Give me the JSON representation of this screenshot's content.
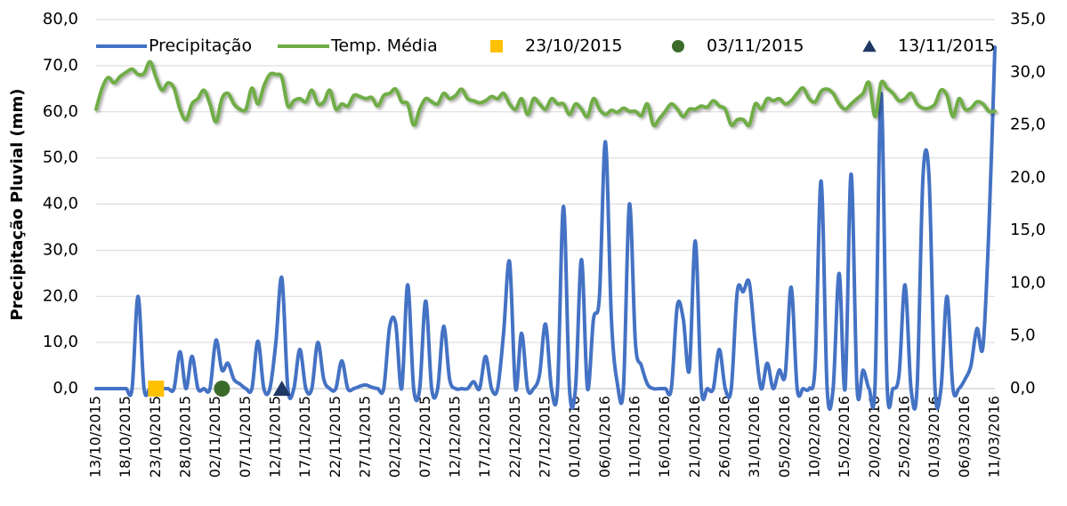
{
  "chart_data": {
    "type": "line",
    "y_label": "Precipitação Pluvial (mm)",
    "categories": [
      "13/10/2015",
      null,
      null,
      null,
      null,
      "18/10/2015",
      null,
      null,
      null,
      null,
      "23/10/2015",
      null,
      null,
      null,
      null,
      "28/10/2015",
      null,
      null,
      null,
      null,
      "02/11/2015",
      null,
      null,
      null,
      null,
      "07/11/2015",
      null,
      null,
      null,
      null,
      "12/11/2015",
      null,
      null,
      null,
      null,
      "17/11/2015",
      null,
      null,
      null,
      null,
      "22/11/2015",
      null,
      null,
      null,
      null,
      "27/11/2015",
      null,
      null,
      null,
      null,
      "02/12/2015",
      null,
      null,
      null,
      null,
      "07/12/2015",
      null,
      null,
      null,
      null,
      "12/12/2015",
      null,
      null,
      null,
      null,
      "17/12/2015",
      null,
      null,
      null,
      null,
      "22/12/2015",
      null,
      null,
      null,
      null,
      "27/12/2015",
      null,
      null,
      null,
      null,
      "01/01/2016",
      null,
      null,
      null,
      null,
      "06/01/2016",
      null,
      null,
      null,
      null,
      "11/01/2016",
      null,
      null,
      null,
      null,
      "16/01/2016",
      null,
      null,
      null,
      null,
      "21/01/2016",
      null,
      null,
      null,
      null,
      "26/01/2016",
      null,
      null,
      null,
      null,
      "31/01/2016",
      null,
      null,
      null,
      null,
      "05/02/2016",
      null,
      null,
      null,
      null,
      "10/02/2016",
      null,
      null,
      null,
      null,
      "15/02/2016",
      null,
      null,
      null,
      null,
      "20/02/2016",
      null,
      null,
      null,
      null,
      "25/02/2016",
      null,
      null,
      null,
      null,
      "01/03/2016",
      null,
      null,
      null,
      null,
      "06/03/2016",
      null,
      null,
      null,
      null,
      "11/03/2016"
    ],
    "series": [
      {
        "name": "Precipitação",
        "color": "#4472c4",
        "values": [
          0,
          0,
          0,
          0,
          0,
          0,
          0,
          20,
          0,
          0,
          0,
          0,
          0,
          0,
          8,
          0,
          7,
          0,
          0,
          0,
          10.5,
          4,
          5.5,
          2,
          1,
          0,
          0,
          10.3,
          0,
          0,
          10,
          24,
          0,
          0,
          8.5,
          0,
          0,
          10,
          2,
          0,
          0,
          6,
          0,
          0,
          0.5,
          0.8,
          0.3,
          0,
          0,
          13.5,
          14,
          0,
          22.5,
          0,
          0,
          19,
          0,
          0,
          13.5,
          2,
          0,
          0,
          0,
          1.5,
          0,
          7,
          0,
          0,
          12,
          27.5,
          0,
          12,
          0,
          0,
          3,
          14,
          0,
          0,
          39.5,
          0,
          0,
          28,
          0,
          15,
          20,
          53.5,
          15,
          1,
          0,
          40,
          10,
          5,
          1,
          0,
          0,
          0,
          0,
          18,
          15,
          4,
          32,
          0,
          0,
          0,
          8.5,
          0,
          0,
          21,
          21,
          23,
          10,
          0,
          5.5,
          0,
          4,
          3,
          22,
          0,
          0,
          0,
          5,
          45,
          0,
          0,
          25,
          0,
          46.5,
          0,
          4,
          0,
          1,
          64,
          1,
          0,
          3,
          22.5,
          0,
          0,
          46,
          46,
          0,
          0,
          20,
          0,
          0,
          2,
          5,
          13,
          9,
          35,
          74
        ]
      },
      {
        "name": "Temp. Média",
        "color": "#70ad47",
        "axis": "y2",
        "values": [
          26.5,
          28.5,
          29.5,
          29,
          29.6,
          30,
          30.3,
          29.8,
          29.9,
          31,
          29.5,
          28.3,
          29,
          28.5,
          26.5,
          25.5,
          27,
          27.5,
          28.3,
          27,
          25.3,
          27.5,
          28,
          27,
          26.5,
          26.5,
          28.5,
          27,
          28.7,
          29.8,
          29.8,
          29.5,
          26.8,
          27.3,
          27.5,
          27.2,
          28.3,
          27,
          27.2,
          28.3,
          26.5,
          27,
          26.8,
          27.8,
          27.7,
          27.5,
          27.6,
          26.8,
          27.8,
          28,
          28.4,
          27.2,
          27,
          25,
          26.5,
          27.5,
          27.2,
          27,
          28,
          27.5,
          27.8,
          28.4,
          27.5,
          27.3,
          27.1,
          27.3,
          27.7,
          27.5,
          28,
          27,
          26.5,
          27.5,
          26,
          27.5,
          27,
          26.5,
          27.5,
          27,
          27,
          26,
          27,
          26.5,
          25.8,
          27.5,
          26.5,
          26,
          26.4,
          26.2,
          26.6,
          26.3,
          26.3,
          25.9,
          27,
          25,
          25.6,
          26.3,
          27,
          26.5,
          25.8,
          26.5,
          26.5,
          26.8,
          26.7,
          27.3,
          26.8,
          26.5,
          25,
          25.5,
          25.5,
          25,
          27,
          26.5,
          27.5,
          27.3,
          27.5,
          27,
          27.3,
          28,
          28.5,
          27.5,
          27.2,
          28.2,
          28.4,
          28,
          27,
          26.5,
          27,
          27.5,
          28,
          29,
          25.8,
          29,
          28.5,
          28,
          27.3,
          27.5,
          28,
          27,
          26.6,
          26.6,
          27,
          28.3,
          27.8,
          25.8,
          27.5,
          26.5,
          26.6,
          27.2,
          27,
          26.3,
          26.3
        ]
      }
    ],
    "markers": [
      {
        "name": "23/10/2015",
        "color": "#ffc000",
        "shape": "square",
        "value": 0
      },
      {
        "name": "03/11/2015",
        "color": "#3b6b2a",
        "shape": "circle",
        "value": 0
      },
      {
        "name": "13/11/2015",
        "color": "#203864",
        "shape": "triangle",
        "value": 0
      }
    ],
    "ylim": [
      0,
      80
    ],
    "yticks": [
      {
        "value": 0,
        "label": "0,0"
      },
      {
        "value": 10,
        "label": "10,0"
      },
      {
        "value": 20,
        "label": "20,0"
      },
      {
        "value": 30,
        "label": "30,0"
      },
      {
        "value": 40,
        "label": "40,0"
      },
      {
        "value": 50,
        "label": "50,0"
      },
      {
        "value": 60,
        "label": "60,0"
      },
      {
        "value": 70,
        "label": "70,0"
      },
      {
        "value": 80,
        "label": "80,0"
      }
    ],
    "y2lim": [
      0,
      35
    ],
    "y2ticks": [
      {
        "value": 0,
        "label": "0,0"
      },
      {
        "value": 5,
        "label": "5,0"
      },
      {
        "value": 10,
        "label": "10,0"
      },
      {
        "value": 15,
        "label": "15,0"
      },
      {
        "value": 20,
        "label": "20,0"
      },
      {
        "value": 25,
        "label": "25,0"
      },
      {
        "value": 30,
        "label": "30,0"
      },
      {
        "value": 35,
        "label": "35,0"
      }
    ],
    "grid": true,
    "legend": "top"
  }
}
